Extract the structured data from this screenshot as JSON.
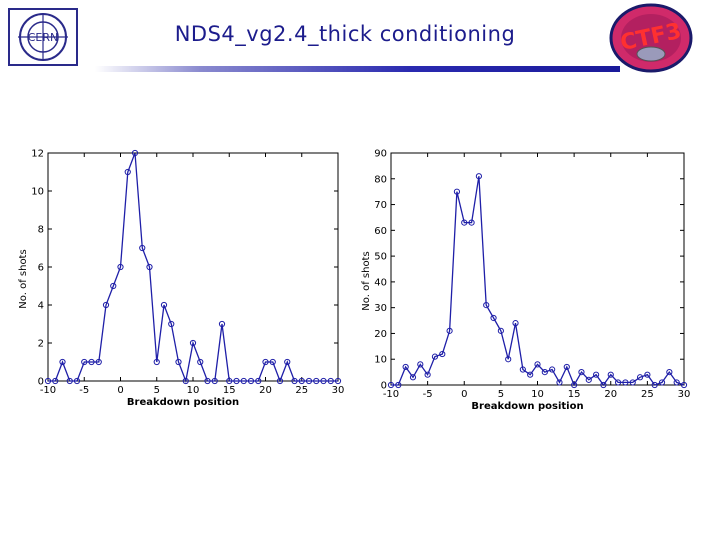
{
  "header": {
    "title": "NDS4_vg2.4_thick conditioning",
    "logo_left_text": "CERN",
    "logo_right_text": "CTF3"
  },
  "colors": {
    "series": "#1f1fa8",
    "title": "#1c1c8c"
  },
  "chart_data": [
    {
      "type": "line",
      "xlabel": "Breakdown position",
      "ylabel": "No. of shots",
      "xlim": [
        -10,
        30
      ],
      "ylim": [
        0,
        12
      ],
      "xticks": [
        -10,
        -5,
        0,
        5,
        10,
        15,
        20,
        25,
        30
      ],
      "yticks": [
        0,
        2,
        4,
        6,
        8,
        10,
        12
      ],
      "grid": false,
      "x": [
        -10,
        -9,
        -8,
        -7,
        -6,
        -5,
        -4,
        -3,
        -2,
        -1,
        0,
        1,
        2,
        3,
        4,
        5,
        6,
        7,
        8,
        9,
        10,
        11,
        12,
        13,
        14,
        15,
        16,
        17,
        18,
        19,
        20,
        21,
        22,
        23,
        24,
        25,
        26,
        27,
        28,
        29,
        30
      ],
      "y": [
        0,
        0,
        1,
        0,
        0,
        1,
        1,
        1,
        4,
        5,
        6,
        11,
        12,
        7,
        6,
        1,
        4,
        3,
        1,
        0,
        2,
        1,
        0,
        0,
        3,
        0,
        0,
        0,
        0,
        0,
        1,
        1,
        0,
        1,
        0,
        0,
        0,
        0,
        0,
        0,
        0
      ]
    },
    {
      "type": "line",
      "xlabel": "Breakdown position",
      "ylabel": "No. of shots",
      "xlim": [
        -10,
        30
      ],
      "ylim": [
        0,
        90
      ],
      "xticks": [
        -10,
        -5,
        0,
        5,
        10,
        15,
        20,
        25,
        30
      ],
      "yticks": [
        0,
        10,
        20,
        30,
        40,
        50,
        60,
        70,
        80,
        90
      ],
      "grid": false,
      "x": [
        -10,
        -9,
        -8,
        -7,
        -6,
        -5,
        -4,
        -3,
        -2,
        -1,
        0,
        1,
        2,
        3,
        4,
        5,
        6,
        7,
        8,
        9,
        10,
        11,
        12,
        13,
        14,
        15,
        16,
        17,
        18,
        19,
        20,
        21,
        22,
        23,
        24,
        25,
        26,
        27,
        28,
        29,
        30
      ],
      "y": [
        0,
        0,
        7,
        3,
        8,
        4,
        11,
        12,
        21,
        75,
        63,
        63,
        81,
        31,
        26,
        21,
        10,
        24,
        6,
        4,
        8,
        5,
        6,
        1,
        7,
        0,
        5,
        2,
        4,
        0,
        4,
        1,
        1,
        1,
        3,
        4,
        0,
        1,
        5,
        1,
        0
      ]
    }
  ]
}
